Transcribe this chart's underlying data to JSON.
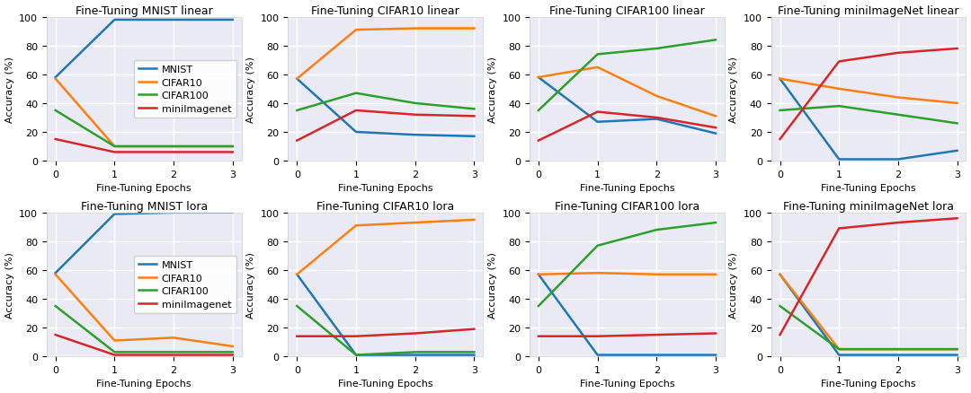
{
  "titles": [
    "Fine-Tuning MNIST linear",
    "Fine-Tuning CIFAR10 linear",
    "Fine-Tuning CIFAR100 linear",
    "Fine-Tuning miniImageNet linear",
    "Fine-Tuning MNIST lora",
    "Fine-Tuning CIFAR10 lora",
    "Fine-Tuning CIFAR100 lora",
    "Fine-Tuning miniImageNet lora"
  ],
  "legend_labels": [
    "MNIST",
    "CIFAR10",
    "CIFAR100",
    "miniImagenet"
  ],
  "colors": [
    "#1f77b4",
    "#ff7f0e",
    "#2ca02c",
    "#d62728"
  ],
  "x": [
    0,
    1,
    2,
    3
  ],
  "series": {
    "mnist_linear": {
      "MNIST": [
        58,
        98,
        98,
        98
      ],
      "CIFAR10": [
        57,
        10,
        10,
        10
      ],
      "CIFAR100": [
        35,
        10,
        10,
        10
      ],
      "miniImagenet": [
        15,
        6,
        6,
        6
      ]
    },
    "cifar10_linear": {
      "MNIST": [
        57,
        20,
        18,
        17
      ],
      "CIFAR10": [
        57,
        91,
        92,
        92
      ],
      "CIFAR100": [
        35,
        47,
        40,
        36
      ],
      "miniImagenet": [
        14,
        35,
        32,
        31
      ]
    },
    "cifar100_linear": {
      "MNIST": [
        58,
        27,
        29,
        19
      ],
      "CIFAR10": [
        58,
        65,
        45,
        31
      ],
      "CIFAR100": [
        35,
        74,
        78,
        84
      ],
      "miniImagenet": [
        14,
        34,
        30,
        23
      ]
    },
    "miniimagenet_linear": {
      "MNIST": [
        57,
        1,
        1,
        7
      ],
      "CIFAR10": [
        57,
        50,
        44,
        40
      ],
      "CIFAR100": [
        35,
        38,
        32,
        26
      ],
      "miniImagenet": [
        15,
        69,
        75,
        78
      ]
    },
    "mnist_lora": {
      "MNIST": [
        58,
        99,
        100,
        100
      ],
      "CIFAR10": [
        57,
        11,
        13,
        7
      ],
      "CIFAR100": [
        35,
        3,
        3,
        3
      ],
      "miniImagenet": [
        15,
        1,
        1,
        1
      ]
    },
    "cifar10_lora": {
      "MNIST": [
        57,
        1,
        1,
        1
      ],
      "CIFAR10": [
        57,
        91,
        93,
        95
      ],
      "CIFAR100": [
        35,
        1,
        3,
        3
      ],
      "miniImagenet": [
        14,
        14,
        16,
        19
      ]
    },
    "cifar100_lora": {
      "MNIST": [
        57,
        1,
        1,
        1
      ],
      "CIFAR10": [
        57,
        58,
        57,
        57
      ],
      "CIFAR100": [
        35,
        77,
        88,
        93
      ],
      "miniImagenet": [
        14,
        14,
        15,
        16
      ]
    },
    "miniimagenet_lora": {
      "MNIST": [
        57,
        1,
        1,
        1
      ],
      "CIFAR10": [
        57,
        5,
        5,
        5
      ],
      "CIFAR100": [
        35,
        5,
        5,
        5
      ],
      "miniImagenet": [
        15,
        89,
        93,
        96
      ]
    }
  },
  "subplot_keys": [
    "mnist_linear",
    "cifar10_linear",
    "cifar100_linear",
    "miniimagenet_linear",
    "mnist_lora",
    "cifar10_lora",
    "cifar100_lora",
    "miniimagenet_lora"
  ],
  "xlabel": "Fine-Tuning Epochs",
  "ylabel": "Accuracy (%)",
  "ylim": [
    0,
    100
  ],
  "xlim": [
    -0.15,
    3.15
  ],
  "xticks": [
    0,
    1,
    2,
    3
  ],
  "background_color": "#eaeaf4",
  "fig_background": "#ffffff",
  "show_legend": [
    true,
    false,
    false,
    false,
    true,
    false,
    false,
    false
  ],
  "legend_loc": "center right"
}
